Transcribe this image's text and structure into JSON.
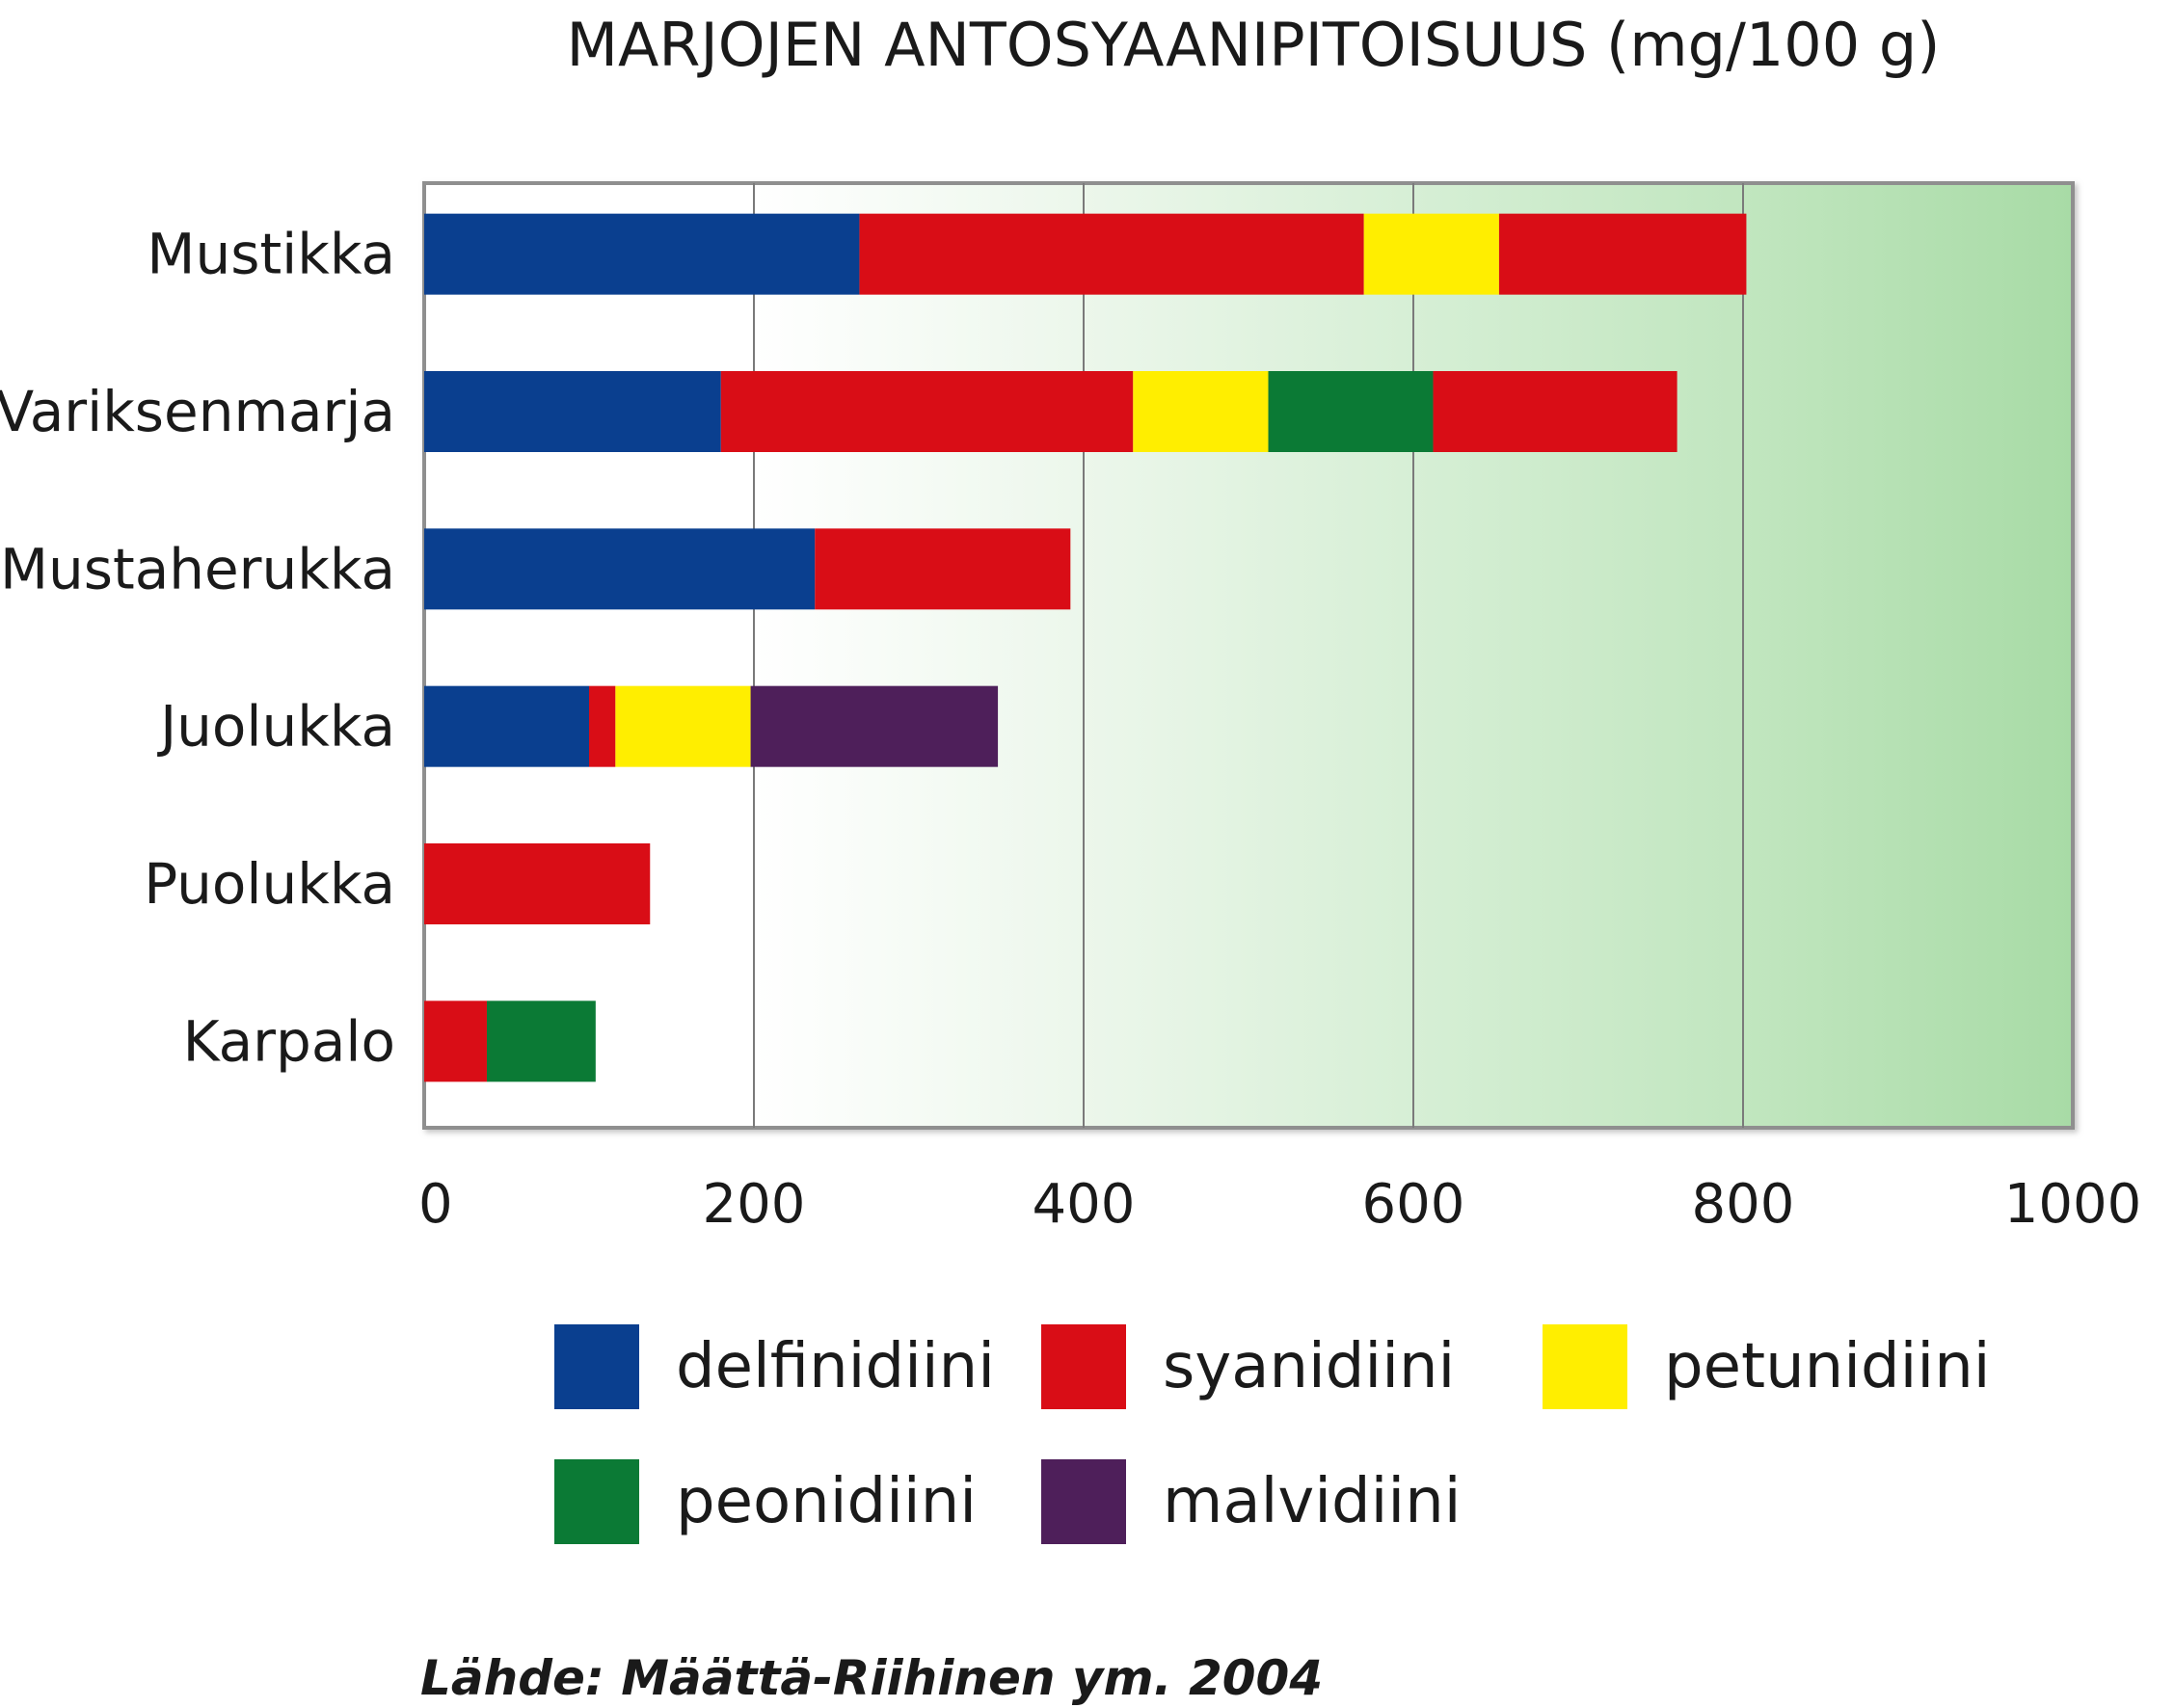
{
  "chart_data": {
    "type": "bar",
    "orientation": "horizontal",
    "stacked": true,
    "title": "MARJOJEN ANTOSYAANIPITOISUUS (mg/100 g)",
    "categories": [
      "Mustikka",
      "Variksenmarja",
      "Mustaherukka",
      "Juolukka",
      "Puolukka",
      "Karpalo"
    ],
    "xlim": [
      0,
      1000
    ],
    "x_ticks": [
      0,
      200,
      400,
      600,
      800,
      1000
    ],
    "grid": "vertical",
    "legend_placement": "bottom",
    "legend": [
      {
        "name": "delfinidiini",
        "color": "#0a3f8f"
      },
      {
        "name": "syanidiini",
        "color": "#d90d16"
      },
      {
        "name": "petunidiini",
        "color": "#ffee00"
      },
      {
        "name": "peonidiini",
        "color": "#0b7a35"
      },
      {
        "name": "malvidiini",
        "color": "#4e1f5a"
      }
    ],
    "stacks": [
      {
        "category": "Mustikka",
        "segments": [
          {
            "series": "delfinidiini",
            "value": 264
          },
          {
            "series": "syanidiini",
            "value": 306
          },
          {
            "series": "petunidiini",
            "value": 82
          },
          {
            "series": "syanidiini",
            "value": 150
          }
        ]
      },
      {
        "category": "Variksenmarja",
        "segments": [
          {
            "series": "delfinidiini",
            "value": 180
          },
          {
            "series": "syanidiini",
            "value": 250
          },
          {
            "series": "petunidiini",
            "value": 82
          },
          {
            "series": "peonidiini",
            "value": 100
          },
          {
            "series": "syanidiini",
            "value": 148
          }
        ]
      },
      {
        "category": "Mustaherukka",
        "segments": [
          {
            "series": "delfinidiini",
            "value": 237
          },
          {
            "series": "syanidiini",
            "value": 155
          }
        ]
      },
      {
        "category": "Juolukka",
        "segments": [
          {
            "series": "delfinidiini",
            "value": 100
          },
          {
            "series": "syanidiini",
            "value": 16
          },
          {
            "series": "petunidiini",
            "value": 82
          },
          {
            "series": "malvidiini",
            "value": 150
          }
        ]
      },
      {
        "category": "Puolukka",
        "segments": [
          {
            "series": "syanidiini",
            "value": 137
          }
        ]
      },
      {
        "category": "Karpalo",
        "segments": [
          {
            "series": "syanidiini",
            "value": 38
          },
          {
            "series": "peonidiini",
            "value": 66
          }
        ]
      }
    ],
    "source": "Lähde: Määttä-Riihinen ym. 2004"
  }
}
